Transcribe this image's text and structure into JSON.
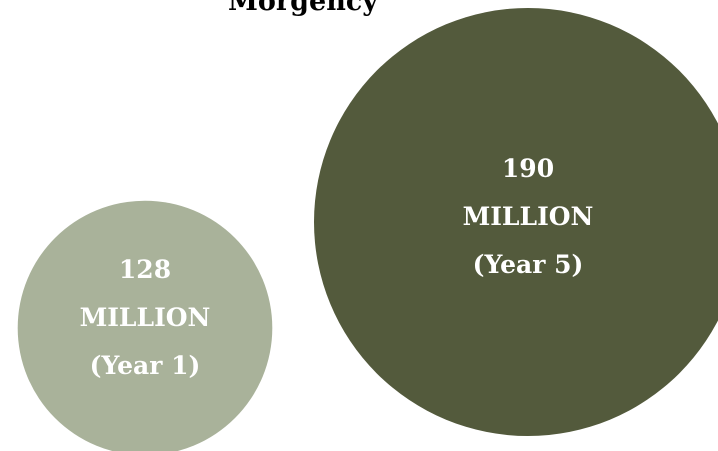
{
  "chart_data": {
    "type": "bubble",
    "title": "Morgency",
    "bubbles": [
      {
        "value": 128,
        "value_label": "128",
        "unit_label": "MILLION",
        "category_label": "(Year 1)",
        "color": "#a9b29a"
      },
      {
        "value": 190,
        "value_label": "190",
        "unit_label": "MILLION",
        "category_label": "(Year 5)",
        "color": "#535a3c"
      }
    ]
  }
}
